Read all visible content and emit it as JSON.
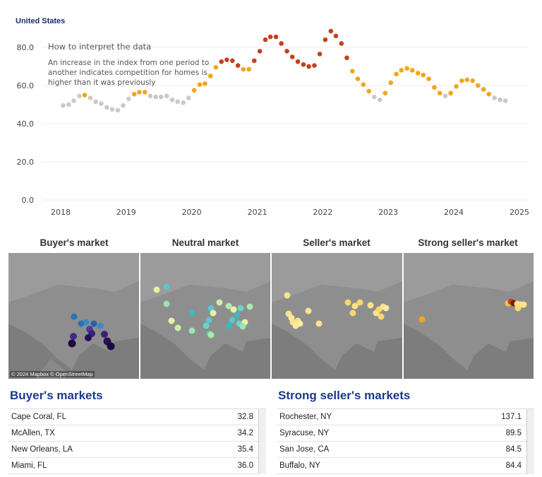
{
  "region": "United States",
  "chart_data": {
    "type": "scatter",
    "title": "United States",
    "annotation_title": "How to interpret the data",
    "annotation_lines": [
      "An increase in the index from one period to",
      "another indicates competition for homes is",
      "higher than it was previously"
    ],
    "ylim": [
      0,
      90
    ],
    "yticks": [
      "0.0",
      "20.0",
      "40.0",
      "60.0",
      "80.0"
    ],
    "xlim": [
      "2018-01-01",
      "2025-01-01"
    ],
    "xticks": [
      "2018",
      "2019",
      "2020",
      "2021",
      "2022",
      "2023",
      "2024",
      "2025"
    ],
    "series": [
      {
        "points": [
          [
            "2018-01",
            49.5
          ],
          [
            "2018-02",
            50
          ],
          [
            "2018-03",
            52
          ],
          [
            "2018-04",
            54.5
          ],
          [
            "2018-05",
            55
          ],
          [
            "2018-06",
            53.5
          ],
          [
            "2018-07",
            51.5
          ],
          [
            "2018-08",
            50.5
          ],
          [
            "2018-09",
            48.5
          ],
          [
            "2018-10",
            47.5
          ],
          [
            "2018-11",
            47
          ],
          [
            "2018-12",
            49.5
          ],
          [
            "2019-01",
            53
          ],
          [
            "2019-02",
            55.5
          ],
          [
            "2019-03",
            56.5
          ],
          [
            "2019-04",
            56.5
          ],
          [
            "2019-05",
            54.5
          ],
          [
            "2019-06",
            54
          ],
          [
            "2019-07",
            54
          ],
          [
            "2019-08",
            54.5
          ],
          [
            "2019-09",
            52.5
          ],
          [
            "2019-10",
            51.5
          ],
          [
            "2019-11",
            51
          ],
          [
            "2019-12",
            53.5
          ],
          [
            "2020-01",
            57.5
          ],
          [
            "2020-02",
            60.5
          ],
          [
            "2020-03",
            61
          ],
          [
            "2020-04",
            65
          ],
          [
            "2020-05",
            69.5
          ],
          [
            "2020-06",
            72.5
          ],
          [
            "2020-07",
            73.5
          ],
          [
            "2020-08",
            73
          ],
          [
            "2020-09",
            70.5
          ],
          [
            "2020-10",
            68.5
          ],
          [
            "2020-11",
            68.5
          ],
          [
            "2020-12",
            73
          ],
          [
            "2021-01",
            78
          ],
          [
            "2021-02",
            84
          ],
          [
            "2021-03",
            85.5
          ],
          [
            "2021-04",
            85.5
          ],
          [
            "2021-05",
            82
          ],
          [
            "2021-06",
            78
          ],
          [
            "2021-07",
            75
          ],
          [
            "2021-08",
            72.5
          ],
          [
            "2021-09",
            71
          ],
          [
            "2021-10",
            70
          ],
          [
            "2021-11",
            70.5
          ],
          [
            "2021-12",
            76.5
          ],
          [
            "2022-01",
            84
          ],
          [
            "2022-02",
            88.5
          ],
          [
            "2022-03",
            86
          ],
          [
            "2022-04",
            82
          ],
          [
            "2022-05",
            74.5
          ],
          [
            "2022-06",
            67.5
          ],
          [
            "2022-07",
            63.5
          ],
          [
            "2022-08",
            60.5
          ],
          [
            "2022-09",
            57
          ],
          [
            "2022-10",
            54
          ],
          [
            "2022-11",
            52.5
          ],
          [
            "2022-12",
            56
          ],
          [
            "2023-01",
            61.5
          ],
          [
            "2023-02",
            66
          ],
          [
            "2023-03",
            68
          ],
          [
            "2023-04",
            69
          ],
          [
            "2023-05",
            68
          ],
          [
            "2023-06",
            66.5
          ],
          [
            "2023-07",
            65.5
          ],
          [
            "2023-08",
            63.5
          ],
          [
            "2023-09",
            59
          ],
          [
            "2023-10",
            56
          ],
          [
            "2023-11",
            54.5
          ],
          [
            "2023-12",
            56
          ],
          [
            "2024-01",
            59.5
          ],
          [
            "2024-02",
            62.5
          ],
          [
            "2024-03",
            63
          ],
          [
            "2024-04",
            62.5
          ],
          [
            "2024-05",
            60
          ],
          [
            "2024-06",
            58
          ],
          [
            "2024-07",
            55.5
          ],
          [
            "2024-08",
            53.5
          ],
          [
            "2024-09",
            52.5
          ],
          [
            "2024-10",
            52
          ]
        ]
      }
    ],
    "colors": {
      "buyer": "#cfc8c3",
      "neutral": "#f2a51c",
      "seller": "#c4401e"
    },
    "grid": true
  },
  "maps": {
    "headers": [
      "Buyer's market",
      "Neutral market",
      "Seller's market",
      "Strong seller's market"
    ],
    "attribution": "© 2024 Mapbox © OpenStreetMap"
  },
  "tables": {
    "buyers": {
      "title": "Buyer's markets",
      "rows": [
        {
          "city": "Cape Coral, FL",
          "value": "32.8"
        },
        {
          "city": "McAllen, TX",
          "value": "34.2"
        },
        {
          "city": "New Orleans, LA",
          "value": "35.4"
        },
        {
          "city": "Miami, FL",
          "value": "36.0"
        }
      ]
    },
    "sellers": {
      "title": "Strong seller's markets",
      "rows": [
        {
          "city": "Rochester, NY",
          "value": "137.1"
        },
        {
          "city": "Syracuse, NY",
          "value": "89.5"
        },
        {
          "city": "San Jose, CA",
          "value": "84.5"
        },
        {
          "city": "Buffalo, NY",
          "value": "84.4"
        }
      ]
    }
  }
}
